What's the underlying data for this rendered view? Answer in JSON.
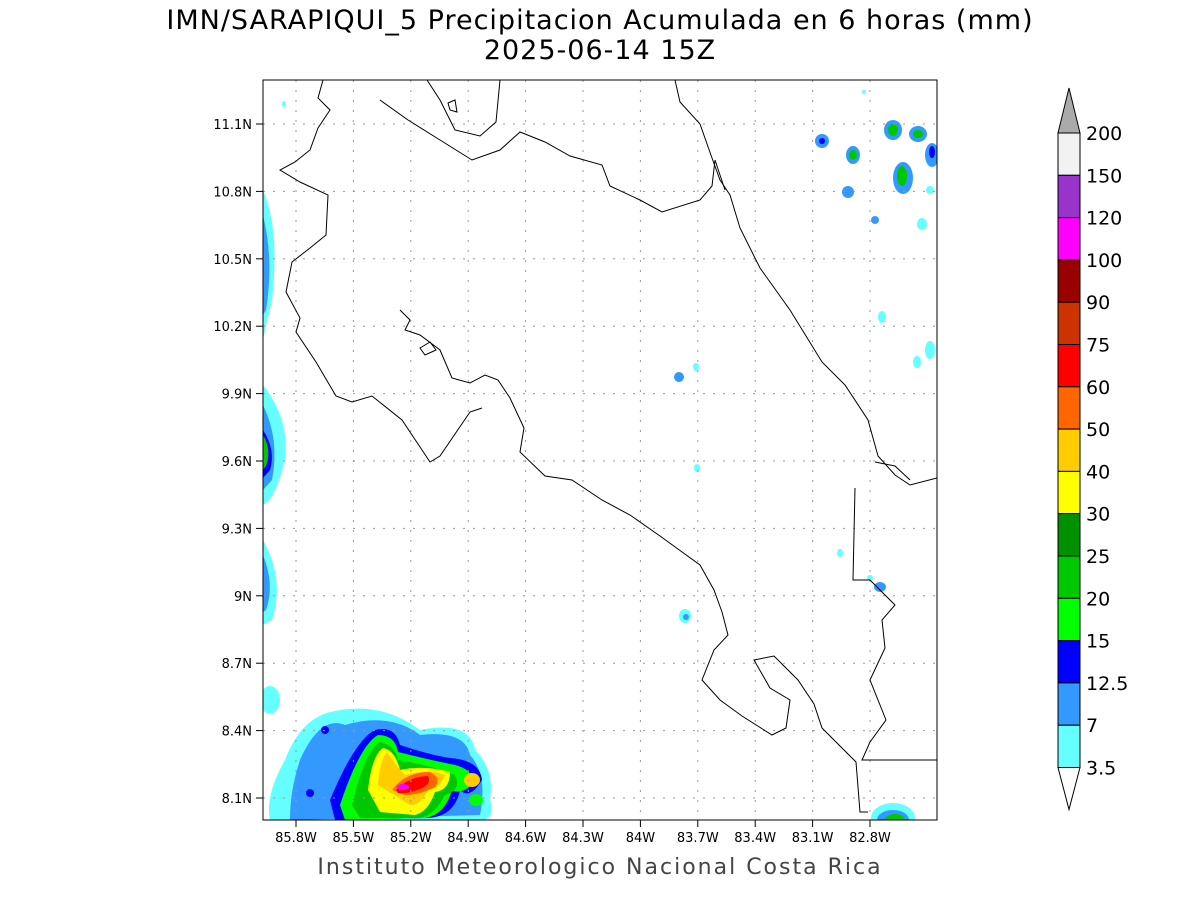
{
  "title": "IMN/SARAPIQUI_5 Precipitacion Acumulada en 6 horas (mm)",
  "subtitle": "2025-06-14 15Z",
  "footer": "Instituto Meteorologico Nacional Costa Rica",
  "map": {
    "lon_labels": [
      "85.8W",
      "85.5W",
      "85.2W",
      "84.9W",
      "84.6W",
      "84.3W",
      "84W",
      "83.7W",
      "83.4W",
      "83.1W",
      "82.8W"
    ],
    "lat_labels": [
      "11.1N",
      "10.8N",
      "10.5N",
      "10.2N",
      "9.9N",
      "9.6N",
      "9.3N",
      "9N",
      "8.7N",
      "8.4N",
      "8.1N"
    ]
  },
  "colorbar": {
    "levels": [
      "3.5",
      "7",
      "12.5",
      "15",
      "20",
      "25",
      "30",
      "40",
      "50",
      "60",
      "75",
      "90",
      "100",
      "120",
      "150",
      "200"
    ],
    "colors": [
      "#66ffff",
      "#3399ff",
      "#0000ff",
      "#00ff00",
      "#00c800",
      "#009000",
      "#ffff00",
      "#ffcc00",
      "#ff6600",
      "#ff0000",
      "#cc3300",
      "#990000",
      "#ff00ff",
      "#9933cc",
      "#f2f2f2"
    ],
    "over_color": "#aaaaaa",
    "under_color": "#ffffff"
  }
}
